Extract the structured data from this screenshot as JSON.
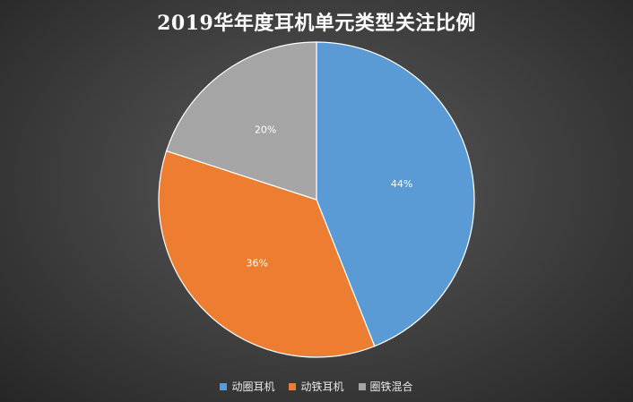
{
  "chart_data": {
    "type": "pie",
    "title": "2019华年度耳机单元类型关注比例",
    "labels": [
      "动圈耳机",
      "动铁耳机",
      "圈铁混合"
    ],
    "values": [
      44,
      36,
      20
    ],
    "value_labels": [
      "44%",
      "36%",
      "20%"
    ],
    "colors": [
      "#5b9bd5",
      "#ed7d31",
      "#a5a5a5"
    ],
    "start_angle_deg": 0,
    "direction": "clockwise",
    "legend_position": "bottom"
  }
}
